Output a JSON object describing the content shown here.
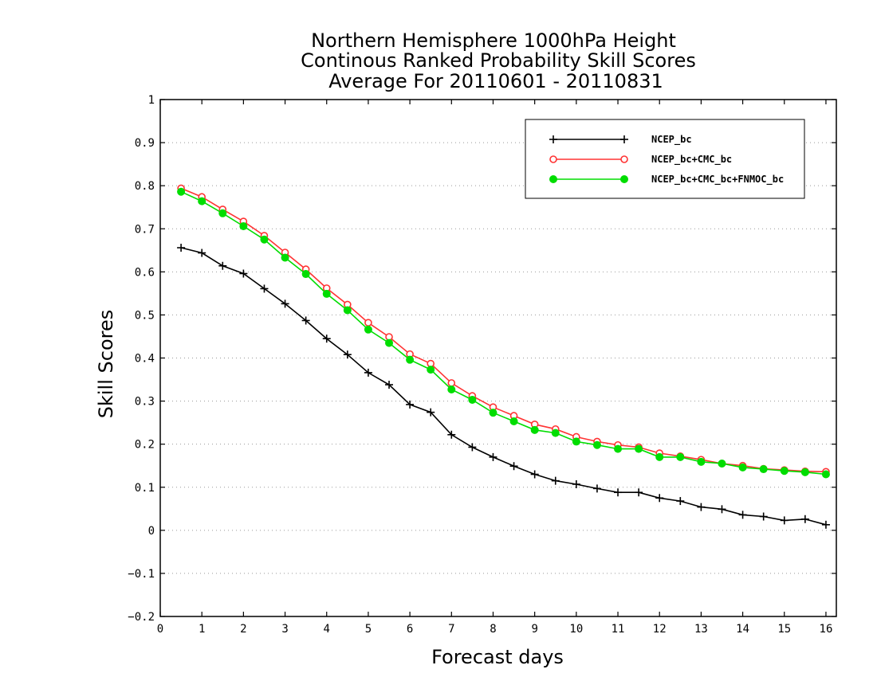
{
  "chart_data": {
    "type": "line",
    "title": [
      "Northern Hemisphere 1000hPa Height",
      "Continous Ranked Probability Skill Scores",
      "Average For 20110601 - 20110831"
    ],
    "xlabel": "Forecast days",
    "ylabel": "Skill Scores",
    "xlim": [
      0,
      16.25
    ],
    "ylim": [
      -0.2,
      1
    ],
    "xticks": [
      "0",
      "1",
      "2",
      "3",
      "4",
      "5",
      "6",
      "7",
      "8",
      "9",
      "10",
      "11",
      "12",
      "13",
      "14",
      "15",
      "16"
    ],
    "yticks": [
      "−0.2",
      "−0.1",
      "0",
      "0.1",
      "0.2",
      "0.3",
      "0.4",
      "0.5",
      "0.6",
      "0.7",
      "0.8",
      "0.9",
      "1"
    ],
    "grid": "horizontal dotted",
    "legend_position": "top-right",
    "x": [
      0.5,
      1,
      1.5,
      2,
      2.5,
      3,
      3.5,
      4,
      4.5,
      5,
      5.5,
      6,
      6.5,
      7,
      7.5,
      8,
      8.5,
      9,
      9.5,
      10,
      10.5,
      11,
      11.5,
      12,
      12.5,
      13,
      13.5,
      14,
      14.5,
      15,
      15.5,
      16
    ],
    "series": [
      {
        "name": "NCEP_bc",
        "color": "#000000",
        "marker": "plus",
        "values": [
          0.656,
          0.644,
          0.614,
          0.596,
          0.561,
          0.526,
          0.487,
          0.445,
          0.408,
          0.366,
          0.338,
          0.292,
          0.274,
          0.222,
          0.193,
          0.17,
          0.149,
          0.13,
          0.115,
          0.107,
          0.097,
          0.088,
          0.088,
          0.075,
          0.068,
          0.054,
          0.049,
          0.036,
          0.032,
          0.023,
          0.026,
          0.013
        ]
      },
      {
        "name": "NCEP_bc+CMC_bc",
        "color": "#ff3333",
        "marker": "open-circle",
        "values": [
          0.794,
          0.774,
          0.745,
          0.717,
          0.684,
          0.645,
          0.606,
          0.562,
          0.524,
          0.482,
          0.449,
          0.409,
          0.387,
          0.342,
          0.312,
          0.286,
          0.266,
          0.246,
          0.235,
          0.217,
          0.206,
          0.198,
          0.193,
          0.179,
          0.172,
          0.164,
          0.155,
          0.15,
          0.143,
          0.14,
          0.137,
          0.136
        ]
      },
      {
        "name": "NCEP_bc+CMC_bc+FNMOC_bc",
        "color": "#00dd00",
        "marker": "filled-circle",
        "values": [
          0.786,
          0.764,
          0.736,
          0.706,
          0.675,
          0.633,
          0.595,
          0.549,
          0.511,
          0.466,
          0.435,
          0.396,
          0.373,
          0.327,
          0.303,
          0.273,
          0.253,
          0.233,
          0.226,
          0.206,
          0.198,
          0.189,
          0.189,
          0.17,
          0.17,
          0.159,
          0.155,
          0.146,
          0.142,
          0.138,
          0.135,
          0.13
        ]
      }
    ]
  }
}
